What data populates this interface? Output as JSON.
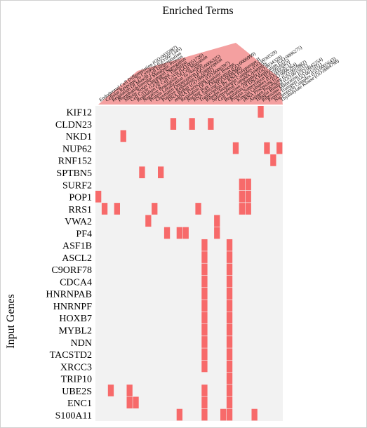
{
  "chart_data": {
    "type": "heatmap",
    "title": "Enriched Terms",
    "ylabel": "Input Genes",
    "xlabel": "",
    "colors": {
      "hit": "#f76a6a",
      "background": "#f2f2f2",
      "term_band": "#f08080"
    },
    "terms": [
      "Endodermal Cell Differentiation (GO:0035987)",
      "Cellular Response To Cytokine (GO:0071345)",
      "Regulation Of Muscle Cell Differentiation",
      "Phosphatidylinositol Metabolic Process",
      "Mitotic Sister Chromatid Segregation",
      "Cell Cycle G2/M Phase Transition",
      "Regulation Of Cell Cycle (GO:0051726)",
      "Negative Regulation Of Cell Migration",
      "Protein Localization To Nucleus",
      "Chromatin Organization (GO:0006325)",
      "Positive Regulation Of Transcription",
      "DNA Repair (GO:0006281)",
      "mRNA Processing (GO:0006397)",
      "Regulation Of Apoptotic Process",
      "Nuclear Pore Organization (GO:0006999)",
      "RNA Splicing (GO:0008380)",
      "Transcription By RNA Polymerase II",
      "Ribonucleoprotein Complex (GO:0030529)",
      "Spliceosomal Complex Assembly",
      "Cell Junction Assembly (GO:0034329)",
      "Regulation Of DNA Replication (GO:0006275)",
      "Protein Sumoylation (GO:0016925)",
      "Kinesin Complex (GO:0005871)",
      "rRNA Processing (GO:0006364)",
      "Antigen Processing (GO:0019882)",
      "Tubulin Binding (GO:0015631)",
      "Ribosome Maturation (GO:0042254)",
      "Protein Transport (GO:0015031)",
      "Nucleoporin Complex (GO:0005643)",
      "Thymidylate Kinase (GO:0004798)"
    ],
    "genes": [
      "KIF12",
      "CLDN23",
      "NKD1",
      "NUP62",
      "RNF152",
      "SPTBN5",
      "SURF2",
      "POP1",
      "RRS1",
      "VWA2",
      "PF4",
      "ASF1B",
      "ASCL2",
      "C9ORF78",
      "CDCA4",
      "HNRNPAB",
      "HNRNPF",
      "HOXB7",
      "MYBL2",
      "NDN",
      "TACSTD2",
      "XRCC3",
      "TRIP10",
      "UBE2S",
      "ENC1",
      "S100A11"
    ],
    "hits": [
      [
        26
      ],
      [
        12,
        15,
        18
      ],
      [
        4
      ],
      [
        22,
        27,
        29
      ],
      [
        28
      ],
      [
        7,
        10
      ],
      [
        23,
        24
      ],
      [
        0,
        23,
        24
      ],
      [
        1,
        3,
        9,
        16,
        23,
        24
      ],
      [
        8,
        19
      ],
      [
        11,
        13,
        14,
        19
      ],
      [
        17,
        21
      ],
      [
        17,
        21
      ],
      [
        17,
        21
      ],
      [
        17,
        21
      ],
      [
        17,
        21
      ],
      [
        17,
        21
      ],
      [
        17,
        21
      ],
      [
        17,
        21
      ],
      [
        17,
        21
      ],
      [
        17,
        21
      ],
      [
        17,
        21
      ],
      [
        21
      ],
      [
        2,
        5,
        17,
        21
      ],
      [
        5,
        6,
        17,
        21
      ],
      [
        13,
        17,
        20,
        21,
        25
      ]
    ]
  }
}
